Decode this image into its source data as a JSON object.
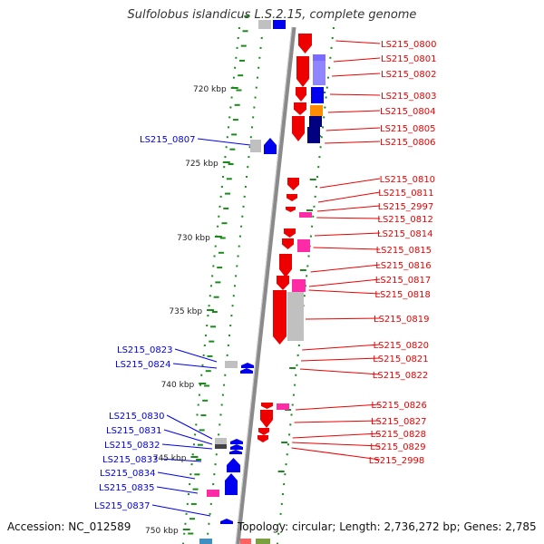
{
  "title": "Sulfolobus islandicus L.S.2.15, complete genome",
  "footer": {
    "accession": "Accession: NC_012589",
    "topology": "Topology: circular; Length: 2,736,272 bp; Genes: 2,785"
  },
  "colors": {
    "forward": "#ee0000",
    "reverse": "#0000ee",
    "backbone": "#8a8a8a",
    "tick": "#1a8a1a",
    "magenta": "#ff2aa6",
    "orange": "#ff8c00",
    "purple": "#7a6bff",
    "navy": "#000080",
    "grey": "#c0c0c0"
  },
  "scale_labels": [
    "720 kbp",
    "725 kbp",
    "730 kbp",
    "735 kbp",
    "740 kbp",
    "745 kbp",
    "750 kbp"
  ],
  "right_labels": [
    "LS215_0800",
    "LS215_0801",
    "LS215_0802",
    "LS215_0803",
    "LS215_0804",
    "LS215_0805",
    "LS215_0806",
    "LS215_0810",
    "LS215_0811",
    "LS215_2997",
    "LS215_0812",
    "LS215_0814",
    "LS215_0815",
    "LS215_0816",
    "LS215_0817",
    "LS215_0818",
    "LS215_0819",
    "LS215_0820",
    "LS215_0821",
    "LS215_0822",
    "LS215_0826",
    "LS215_0827",
    "LS215_0828",
    "LS215_0829",
    "LS215_2998"
  ],
  "left_labels": [
    "LS215_0807",
    "LS215_0823",
    "LS215_0824",
    "LS215_0830",
    "LS215_0831",
    "LS215_0832",
    "LS215_0833",
    "LS215_0834",
    "LS215_0835",
    "LS215_0837"
  ]
}
